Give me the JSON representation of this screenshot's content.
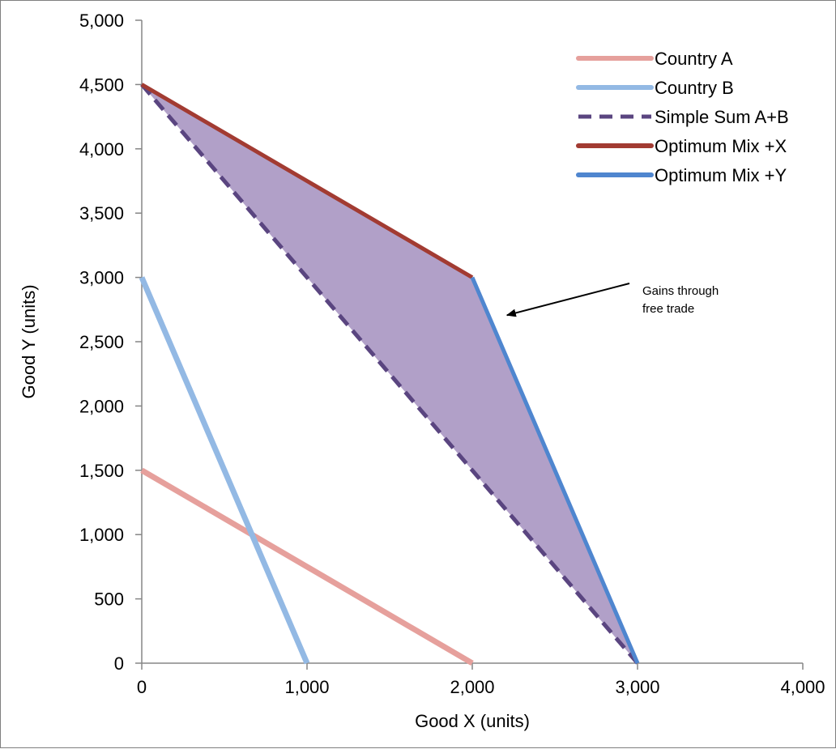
{
  "chart_data": {
    "type": "line",
    "title": "",
    "xlabel": "Good X (units)",
    "ylabel": "Good Y (units)",
    "xlim": [
      0,
      4000
    ],
    "ylim": [
      0,
      5000
    ],
    "x_ticks": [
      "0",
      "1,000",
      "2,000",
      "3,000",
      "4,000"
    ],
    "y_ticks": [
      "0",
      "500",
      "1,000",
      "1,500",
      "2,000",
      "2,500",
      "3,000",
      "3,500",
      "4,000",
      "4,500",
      "5,000"
    ],
    "grid": false,
    "legend_position": "top-right",
    "series": [
      {
        "name": "Country A",
        "color": "#e6a09c",
        "style": "solid",
        "points": [
          [
            0,
            1500
          ],
          [
            2000,
            0
          ]
        ]
      },
      {
        "name": "Country B",
        "color": "#93b9e4",
        "style": "solid",
        "points": [
          [
            0,
            3000
          ],
          [
            1000,
            0
          ]
        ]
      },
      {
        "name": "Simple Sum A+B",
        "color": "#5a4580",
        "style": "dashed",
        "points": [
          [
            0,
            4500
          ],
          [
            3000,
            0
          ]
        ]
      },
      {
        "name": "Optimum Mix +X",
        "color": "#a23b32",
        "style": "solid",
        "points": [
          [
            0,
            4500
          ],
          [
            2000,
            3000
          ]
        ]
      },
      {
        "name": "Optimum Mix +Y",
        "color": "#4f86cf",
        "style": "solid",
        "points": [
          [
            2000,
            3000
          ],
          [
            3000,
            0
          ]
        ]
      }
    ],
    "shaded_area": {
      "color": "#b1a0c8",
      "points": [
        [
          0,
          4500
        ],
        [
          2000,
          3000
        ],
        [
          3000,
          0
        ]
      ]
    },
    "annotations": [
      {
        "text_lines": [
          "Gains through",
          "free trade"
        ],
        "arrow_to": [
          2200,
          2700
        ]
      }
    ]
  }
}
